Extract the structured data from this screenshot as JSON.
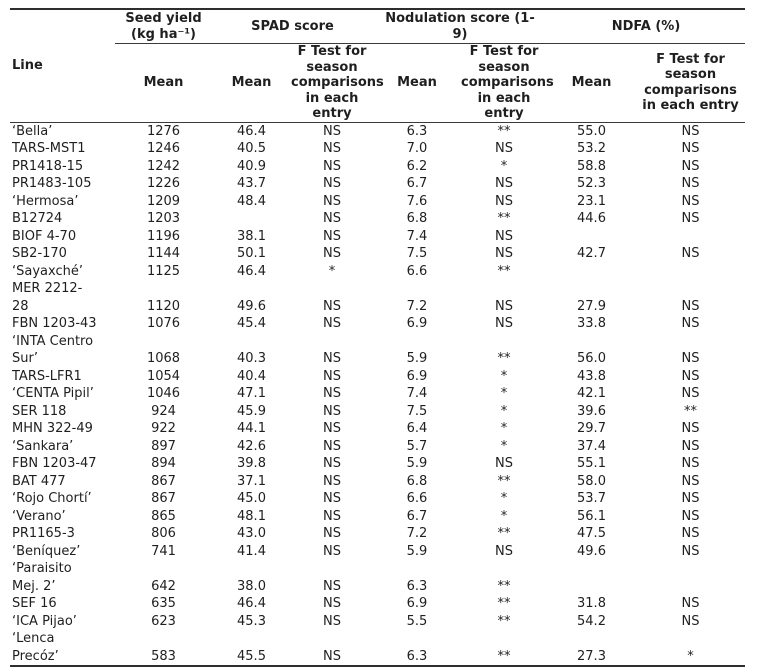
{
  "table": {
    "header": {
      "line_label": "Line",
      "groups": [
        {
          "label": "Seed yield\n(kg ha⁻¹)"
        },
        {
          "label": "SPAD score"
        },
        {
          "label": "Nodulation score (1-\n9)"
        },
        {
          "label": "NDFA (%)"
        }
      ],
      "subheaders": [
        "Mean",
        "Mean",
        "F Test for\nseason\ncomparisons\nin each entry",
        "Mean",
        "F Test for\nseason\ncomparisons\nin each entry",
        "Mean",
        "F Test for\nseason\ncomparisons\nin each entry"
      ]
    },
    "rows": [
      {
        "line": "‘Bella’",
        "values": [
          "1276",
          "46.4",
          "NS",
          "6.3",
          "**",
          "55.0",
          "NS"
        ]
      },
      {
        "line": "TARS-MST1",
        "values": [
          "1246",
          "40.5",
          "NS",
          "7.0",
          "NS",
          "53.2",
          "NS"
        ]
      },
      {
        "line": "PR1418-15",
        "values": [
          "1242",
          "40.9",
          "NS",
          "6.2",
          "*",
          "58.8",
          "NS"
        ]
      },
      {
        "line": "PR1483-105",
        "values": [
          "1226",
          "43.7",
          "NS",
          "6.7",
          "NS",
          "52.3",
          "NS"
        ]
      },
      {
        "line": "‘Hermosa’",
        "values": [
          "1209",
          "48.4",
          "NS",
          "7.6",
          "NS",
          "23.1",
          "NS"
        ]
      },
      {
        "line": "B12724",
        "values": [
          "1203",
          "",
          "NS",
          "6.8",
          "**",
          "44.6",
          "NS"
        ]
      },
      {
        "line": "BIOF 4-70",
        "values": [
          "1196",
          "38.1",
          "NS",
          "7.4",
          "NS",
          "",
          ""
        ]
      },
      {
        "line": "SB2-170",
        "values": [
          "1144",
          "50.1",
          "NS",
          "7.5",
          "NS",
          "42.7",
          "NS"
        ]
      },
      {
        "line": "‘Sayaxché’",
        "values": [
          "1125",
          "46.4",
          "*",
          "6.6",
          "**",
          "",
          ""
        ]
      },
      {
        "line": "MER 2212-\n28",
        "values": [
          "1120",
          "49.6",
          "NS",
          "7.2",
          "NS",
          "27.9",
          "NS"
        ]
      },
      {
        "line": "FBN 1203-43",
        "values": [
          "1076",
          "45.4",
          "NS",
          "6.9",
          "NS",
          "33.8",
          "NS"
        ]
      },
      {
        "line": "‘INTA Centro\nSur’",
        "values": [
          "1068",
          "40.3",
          "NS",
          "5.9",
          "**",
          "56.0",
          "NS"
        ]
      },
      {
        "line": "TARS-LFR1",
        "values": [
          "1054",
          "40.4",
          "NS",
          "6.9",
          "*",
          "43.8",
          "NS"
        ]
      },
      {
        "line": "‘CENTA Pipil’",
        "values": [
          "1046",
          "47.1",
          "NS",
          "7.4",
          "*",
          "42.1",
          "NS"
        ]
      },
      {
        "line": "SER 118",
        "values": [
          "924",
          "45.9",
          "NS",
          "7.5",
          "*",
          "39.6",
          "**"
        ]
      },
      {
        "line": "MHN 322-49",
        "values": [
          "922",
          "44.1",
          "NS",
          "6.4",
          "*",
          "29.7",
          "NS"
        ]
      },
      {
        "line": "‘Sankara’",
        "values": [
          "897",
          "42.6",
          "NS",
          "5.7",
          "*",
          "37.4",
          "NS"
        ]
      },
      {
        "line": "FBN 1203-47",
        "values": [
          "894",
          "39.8",
          "NS",
          "5.9",
          "NS",
          "55.1",
          "NS"
        ]
      },
      {
        "line": "BAT 477",
        "values": [
          "867",
          "37.1",
          "NS",
          "6.8",
          "**",
          "58.0",
          "NS"
        ]
      },
      {
        "line": "‘Rojo Chortí’",
        "values": [
          "867",
          "45.0",
          "NS",
          "6.6",
          "*",
          "53.7",
          "NS"
        ]
      },
      {
        "line": "‘Verano’",
        "values": [
          "865",
          "48.1",
          "NS",
          "6.7",
          "*",
          "56.1",
          "NS"
        ]
      },
      {
        "line": "PR1165-3",
        "values": [
          "806",
          "43.0",
          "NS",
          "7.2",
          "**",
          "47.5",
          "NS"
        ]
      },
      {
        "line": "‘Beníquez’",
        "values": [
          "741",
          "41.4",
          "NS",
          "5.9",
          "NS",
          "49.6",
          "NS"
        ]
      },
      {
        "line": "‘Paraisito\nMej. 2’",
        "values": [
          "642",
          "38.0",
          "NS",
          "6.3",
          "**",
          "",
          ""
        ]
      },
      {
        "line": "SEF 16",
        "values": [
          "635",
          "46.4",
          "NS",
          "6.9",
          "**",
          "31.8",
          "NS"
        ]
      },
      {
        "line": "‘ICA Pijao’",
        "values": [
          "623",
          "45.3",
          "NS",
          "5.5",
          "**",
          "54.2",
          "NS"
        ]
      },
      {
        "line": "‘Lenca\nPrecóz’",
        "values": [
          "583",
          "45.5",
          "NS",
          "6.3",
          "**",
          "27.3",
          "*"
        ]
      }
    ]
  }
}
